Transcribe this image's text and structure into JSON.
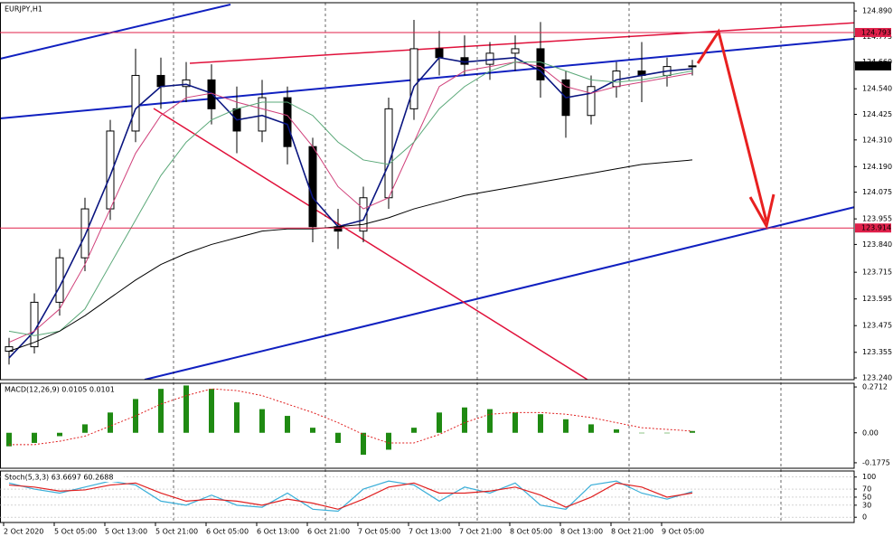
{
  "chart_data": [
    {
      "type": "candlestick",
      "title": "EURJPY,H1",
      "categories": [
        "2 Oct 2020",
        null,
        "5 Oct 05:00",
        null,
        "5 Oct 13:00",
        null,
        "5 Oct 21:00",
        null,
        "6 Oct 05:00",
        null,
        "6 Oct 13:00",
        null,
        "6 Oct 21:00",
        null,
        "7 Oct 05:00",
        null,
        "7 Oct 13:00",
        null,
        "7 Oct 21:00",
        null,
        "8 Oct 05:00",
        null,
        "8 Oct 13:00",
        null,
        "8 Oct 21:00",
        null,
        "9 Oct 05:00",
        null
      ],
      "open": [
        123.36,
        123.38,
        123.58,
        123.78,
        124.0,
        124.35,
        124.6,
        124.55,
        124.58,
        124.45,
        124.35,
        124.5,
        124.28,
        123.92,
        123.9,
        124.05,
        124.45,
        124.72,
        124.68,
        124.65,
        124.7,
        124.72,
        124.58,
        124.42,
        124.55,
        124.62,
        124.6,
        124.64
      ],
      "high": [
        123.42,
        123.62,
        123.82,
        124.05,
        124.4,
        124.72,
        124.68,
        124.66,
        124.65,
        124.55,
        124.58,
        124.55,
        124.32,
        124.0,
        124.1,
        124.5,
        124.85,
        124.8,
        124.78,
        124.75,
        124.78,
        124.84,
        124.62,
        124.6,
        124.66,
        124.75,
        124.68,
        124.67
      ],
      "low": [
        123.3,
        123.35,
        123.52,
        123.72,
        123.95,
        124.3,
        124.45,
        124.48,
        124.38,
        124.25,
        124.3,
        124.2,
        123.85,
        123.82,
        123.85,
        124.0,
        124.4,
        124.6,
        124.6,
        124.58,
        124.62,
        124.5,
        124.32,
        124.38,
        124.5,
        124.48,
        124.55,
        124.6
      ],
      "close": [
        123.38,
        123.58,
        123.78,
        124.0,
        124.35,
        124.6,
        124.55,
        124.58,
        124.45,
        124.35,
        124.5,
        124.28,
        123.92,
        123.9,
        124.05,
        124.45,
        124.72,
        124.68,
        124.65,
        124.7,
        124.72,
        124.58,
        124.42,
        124.55,
        124.62,
        124.6,
        124.64,
        124.643
      ],
      "series": [
        {
          "color": "#0a1580",
          "values": [
            123.33,
            123.45,
            123.65,
            123.88,
            124.15,
            124.45,
            124.55,
            124.56,
            124.52,
            124.4,
            124.42,
            124.38,
            124.05,
            123.92,
            123.95,
            124.2,
            124.55,
            124.68,
            124.66,
            124.67,
            124.68,
            124.62,
            124.5,
            124.52,
            124.58,
            124.6,
            124.62,
            124.63
          ]
        },
        {
          "color": "#d0407a",
          "values": [
            123.4,
            123.45,
            123.55,
            123.75,
            124.0,
            124.25,
            124.42,
            124.5,
            124.52,
            124.48,
            124.45,
            124.42,
            124.28,
            124.1,
            124.0,
            124.05,
            124.3,
            124.55,
            124.62,
            124.64,
            124.66,
            124.64,
            124.55,
            124.52,
            124.55,
            124.57,
            124.59,
            124.61
          ]
        },
        {
          "color": "#5aa878",
          "values": [
            123.45,
            123.43,
            123.45,
            123.55,
            123.75,
            123.95,
            124.15,
            124.3,
            124.4,
            124.45,
            124.48,
            124.48,
            124.42,
            124.3,
            124.22,
            124.2,
            124.3,
            124.45,
            124.55,
            124.62,
            124.66,
            124.66,
            124.62,
            124.58,
            124.57,
            124.58,
            124.6,
            124.62
          ]
        },
        {
          "color": "#000000",
          "values": [
            123.36,
            123.4,
            123.45,
            123.52,
            123.6,
            123.68,
            123.75,
            123.8,
            123.84,
            123.87,
            123.9,
            123.91,
            123.91,
            123.92,
            123.93,
            123.96,
            124.0,
            124.03,
            124.06,
            124.08,
            124.1,
            124.12,
            124.14,
            124.16,
            124.18,
            124.2,
            124.21,
            124.22
          ]
        }
      ],
      "levels": [
        124.793,
        123.914
      ],
      "level_color": "#e0204a",
      "last_price": 124.643,
      "ylim": [
        123.232,
        124.927
      ],
      "yticks": [
        {
          "value": 124.89,
          "label": "124.890"
        },
        124.775,
        {
          "value": 124.66,
          "label": "124.660"
        },
        {
          "value": 124.54,
          "label": "124.540"
        },
        124.425,
        {
          "value": 124.31,
          "label": "124.310"
        },
        {
          "value": 124.19,
          "label": "124.190"
        },
        124.075,
        123.955,
        {
          "value": 123.84,
          "label": "123.840"
        },
        123.715,
        123.595,
        123.475,
        123.355,
        {
          "value": 123.24,
          "label": "123.240"
        }
      ]
    },
    {
      "type": "macd",
      "title": "MACD(12,26,9) 0.0105 0.0101",
      "values": [
        -0.08,
        -0.06,
        -0.02,
        0.05,
        0.12,
        0.2,
        0.26,
        0.28,
        0.26,
        0.18,
        0.14,
        0.1,
        0.03,
        -0.06,
        -0.13,
        -0.1,
        0.03,
        0.12,
        0.15,
        0.14,
        0.12,
        0.11,
        0.08,
        0.05,
        0.02,
        0.0,
        0.0,
        0.0105
      ],
      "signal": [
        -0.07,
        -0.07,
        -0.05,
        -0.02,
        0.04,
        0.1,
        0.17,
        0.22,
        0.26,
        0.25,
        0.22,
        0.17,
        0.12,
        0.06,
        -0.01,
        -0.06,
        -0.06,
        -0.01,
        0.06,
        0.11,
        0.12,
        0.12,
        0.11,
        0.09,
        0.06,
        0.03,
        0.02,
        0.0101
      ],
      "color": "#1f8a12",
      "signal_color": "#e02020",
      "ylim": [
        -0.21,
        0.293
      ],
      "yticks": [
        0.2712,
        {
          "value": 0,
          "label": "0.00"
        },
        -0.1775
      ]
    },
    {
      "type": "stochastic",
      "title": "Stoch(5,3,3) 63.6697 60.2688",
      "series": [
        {
          "color": "#3aaed8",
          "values": [
            85,
            70,
            60,
            75,
            90,
            80,
            40,
            30,
            55,
            30,
            25,
            60,
            20,
            15,
            70,
            90,
            80,
            40,
            75,
            60,
            85,
            30,
            20,
            80,
            90,
            60,
            45,
            63.6697
          ]
        },
        {
          "color": "#e02020",
          "values": [
            80,
            75,
            65,
            68,
            80,
            85,
            60,
            40,
            45,
            40,
            30,
            45,
            35,
            20,
            45,
            75,
            85,
            60,
            60,
            65,
            75,
            55,
            25,
            50,
            85,
            75,
            50,
            60.2688
          ]
        }
      ],
      "ylim": [
        -13,
        115
      ],
      "yticks": [
        100,
        70,
        50,
        30,
        0
      ]
    }
  ]
}
